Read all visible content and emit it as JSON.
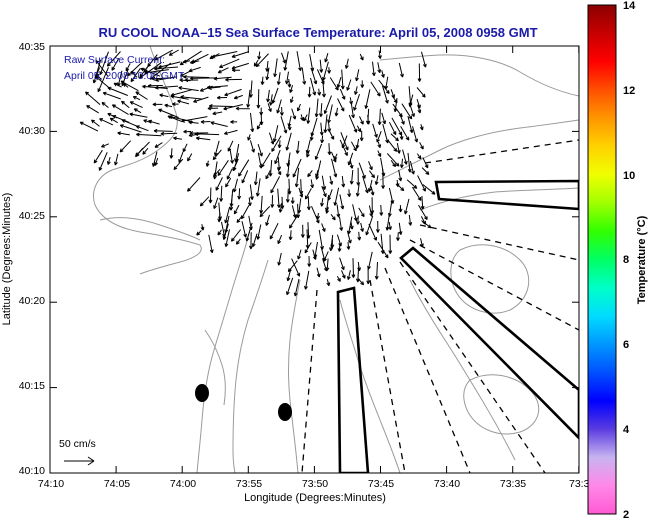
{
  "title": "RU COOL  NOAA–15  Sea Surface Temperature:  April 05, 2008 0958 GMT",
  "legend": {
    "line1": "Raw Surface Current:",
    "line2": "April 05, 2008 10:00 GMT"
  },
  "scale": {
    "label": "50 cm/s"
  },
  "axes": {
    "xlabel": "Longitude (Degrees:Minutes)",
    "ylabel": "Latitude (Degrees:Minutes)",
    "xticks": [
      "74:10",
      "74:05",
      "74:00",
      "73:55",
      "73:50",
      "73:45",
      "73:40",
      "73:35",
      "73:3"
    ],
    "yticks": [
      "40:35",
      "40:30",
      "40:25",
      "40:20",
      "40:15",
      "40:10"
    ]
  },
  "colorbar": {
    "label": "Temperature (°C)",
    "ticks": [
      "14",
      "12",
      "10",
      "8",
      "6",
      "4",
      "2"
    ],
    "min": 2,
    "max": 14,
    "colors": [
      "#ff5ad2",
      "#ff88e8",
      "#c8b4f0",
      "#5a3ce0",
      "#0000ff",
      "#0050ff",
      "#0096ff",
      "#00dcff",
      "#00ffc8",
      "#00ff64",
      "#32ff00",
      "#a0ff00",
      "#f0ff00",
      "#ffd200",
      "#ff9600",
      "#ff5000",
      "#ff0000",
      "#c80000",
      "#8c0000"
    ]
  },
  "colors": {
    "title": "#1a1aa8",
    "contour": "#9a9a9a",
    "arrows": "#000000"
  }
}
